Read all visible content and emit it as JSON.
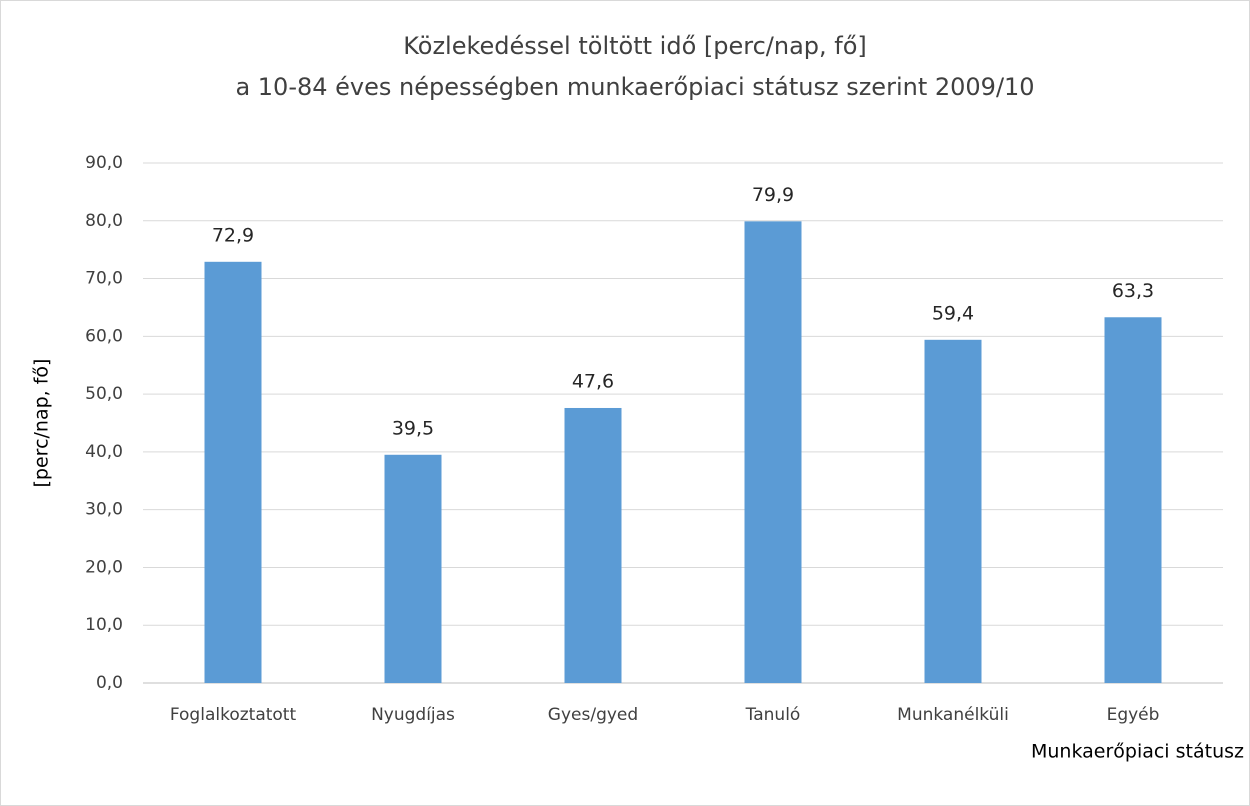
{
  "chart_data": {
    "type": "bar",
    "title": "Közlekedéssel töltött idő [perc/nap, fő]",
    "subtitle": "a 10-84 éves népességben munkaerőpiaci státusz szerint 2009/10",
    "y_label": "[perc/nap, fő]",
    "x_label": "Munkaerőpiaci státusz",
    "categories": [
      "Foglalkoztatott",
      "Nyugdíjas",
      "Gyes/gyed",
      "Tanuló",
      "Munkanélküli",
      "Egyéb"
    ],
    "values": [
      72.9,
      39.5,
      47.6,
      79.9,
      59.4,
      63.3
    ],
    "value_labels": [
      "72,9",
      "39,5",
      "47,6",
      "79,9",
      "59,4",
      "63,3"
    ],
    "color": "#5b9bd5",
    "ylim": [
      0,
      90
    ],
    "yticks": [
      {
        "value": 0,
        "label": "0,0"
      },
      {
        "value": 10,
        "label": "10,0"
      },
      {
        "value": 20,
        "label": "20,0"
      },
      {
        "value": 30,
        "label": "30,0"
      },
      {
        "value": 40,
        "label": "40,0"
      },
      {
        "value": 50,
        "label": "50,0"
      },
      {
        "value": 60,
        "label": "60,0"
      },
      {
        "value": 70,
        "label": "70,0"
      },
      {
        "value": 80,
        "label": "80,0"
      },
      {
        "value": 90,
        "label": "90,0"
      }
    ],
    "grid": true
  }
}
